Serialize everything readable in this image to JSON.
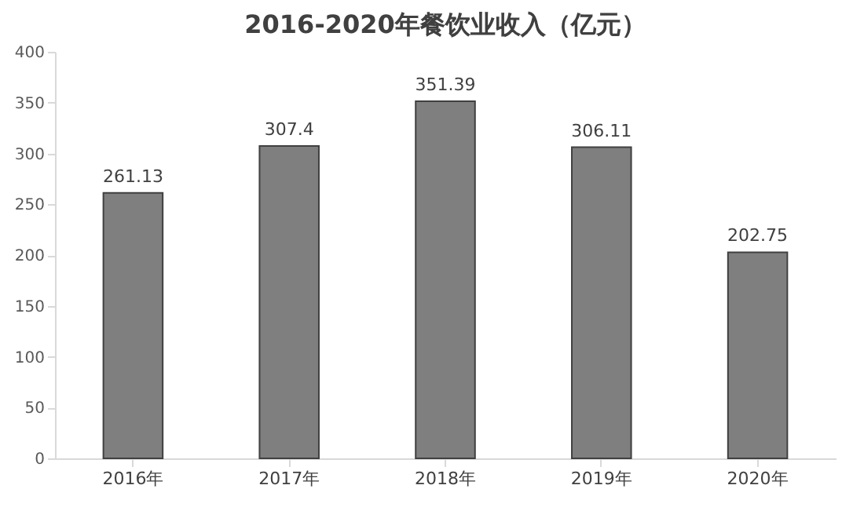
{
  "chart_data": {
    "type": "bar",
    "title": "2016-2020年餐饮业收入（亿元）",
    "categories": [
      "2016年",
      "2017年",
      "2018年",
      "2019年",
      "2020年"
    ],
    "values": [
      261.13,
      307.4,
      351.39,
      306.11,
      202.75
    ],
    "value_labels": [
      "261.13",
      "307.4",
      "351.39",
      "306.11",
      "202.75"
    ],
    "color": "#7f7f7f",
    "ylim": [
      0,
      400
    ],
    "yticks": [
      0,
      50,
      100,
      150,
      200,
      250,
      300,
      350,
      400
    ],
    "grid": false
  }
}
